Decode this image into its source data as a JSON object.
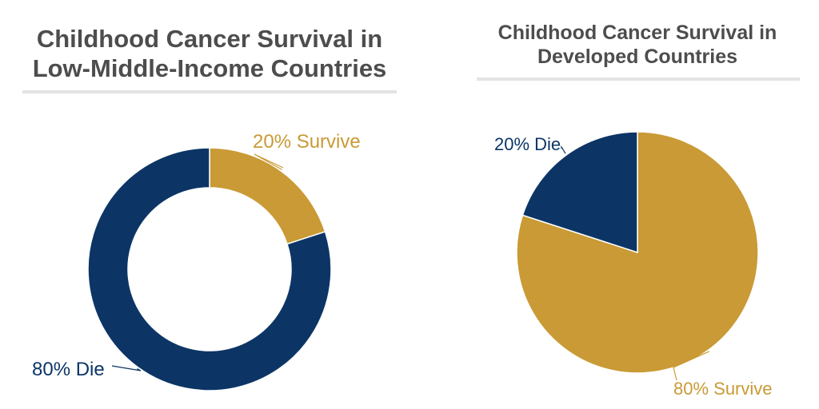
{
  "colors": {
    "navy": "#0c3566",
    "gold": "#c99a35",
    "title": "#4d4d4d",
    "rule": "#e3e3e3"
  },
  "chart_data": [
    {
      "type": "pie",
      "variant": "donut",
      "title": "Childhood Cancer Survival in Low-Middle-Income Countries",
      "title_lines": [
        "Childhood Cancer Survival in",
        "Low-Middle-Income Countries"
      ],
      "slices": [
        {
          "label": "20% Survive",
          "value": 20,
          "color": "#c99a35"
        },
        {
          "label": "80% Die",
          "value": 80,
          "color": "#0c3566"
        }
      ]
    },
    {
      "type": "pie",
      "variant": "full",
      "title": "Childhood Cancer Survival in Developed Countries",
      "title_lines": [
        "Childhood Cancer Survival in",
        "Developed Countries"
      ],
      "slices": [
        {
          "label": "80% Survive",
          "value": 80,
          "color": "#c99a35"
        },
        {
          "label": "20% Die",
          "value": 20,
          "color": "#0c3566"
        }
      ]
    }
  ]
}
